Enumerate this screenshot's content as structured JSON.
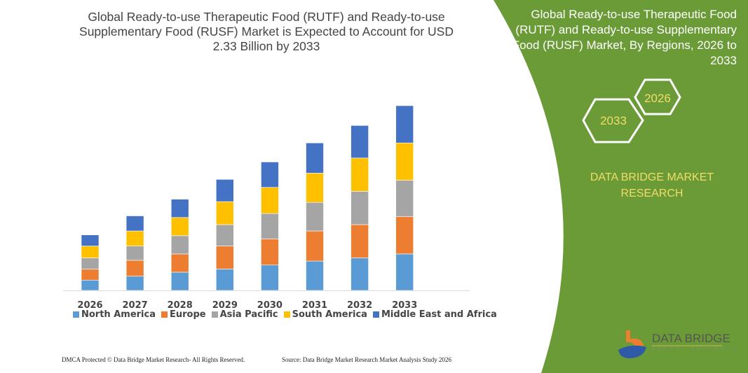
{
  "header": {
    "title": "Global Ready-to-use Therapeutic Food (RUTF) and Ready-to-use Supplementary Food (RUSF) Market is Expected to Account for USD 2.33 Billion by 2033"
  },
  "side_panel": {
    "title": "Global Ready-to-use Therapeutic Food (RUTF) and Ready-to-use Supplementary Food (RUSF) Market, By Regions, 2026 to 2033",
    "hex_start": "2026",
    "hex_end": "2033",
    "brand": "DATA BRIDGE MARKET RESEARCH",
    "logo_text": "DATA BRIDGE",
    "logo_sub": "MARKET RESEARCH",
    "panel_color": "#6b9b37",
    "accent_text_color": "#f2dc6a"
  },
  "footer": {
    "left": "DMCA Protected © Data Bridge Market Research- All Rights Reserved.",
    "right": "Source: Data Bridge Market Research Market Analysis Study 2026"
  },
  "chart_data": {
    "type": "bar",
    "stacked": true,
    "title": "",
    "xlabel": "",
    "ylabel": "",
    "y_axis_shown": false,
    "grid": false,
    "legend_placement": "bottom",
    "unit": "USD Billion (estimated)",
    "categories": [
      "2026",
      "2027",
      "2028",
      "2029",
      "2030",
      "2031",
      "2032",
      "2033"
    ],
    "series": [
      {
        "name": "North America",
        "color": "#5b9bd5",
        "values": [
          0.13,
          0.18,
          0.23,
          0.27,
          0.32,
          0.37,
          0.41,
          0.46
        ]
      },
      {
        "name": "Europe",
        "color": "#ed7d31",
        "values": [
          0.14,
          0.2,
          0.23,
          0.29,
          0.33,
          0.38,
          0.42,
          0.47
        ]
      },
      {
        "name": "Asia Pacific",
        "color": "#a5a5a5",
        "values": [
          0.14,
          0.18,
          0.23,
          0.27,
          0.32,
          0.36,
          0.42,
          0.46
        ]
      },
      {
        "name": "South America",
        "color": "#ffc000",
        "values": [
          0.15,
          0.19,
          0.23,
          0.29,
          0.33,
          0.37,
          0.42,
          0.47
        ]
      },
      {
        "name": "Middle East and Africa",
        "color": "#4472c4",
        "values": [
          0.14,
          0.19,
          0.23,
          0.28,
          0.32,
          0.38,
          0.41,
          0.47
        ]
      }
    ]
  }
}
